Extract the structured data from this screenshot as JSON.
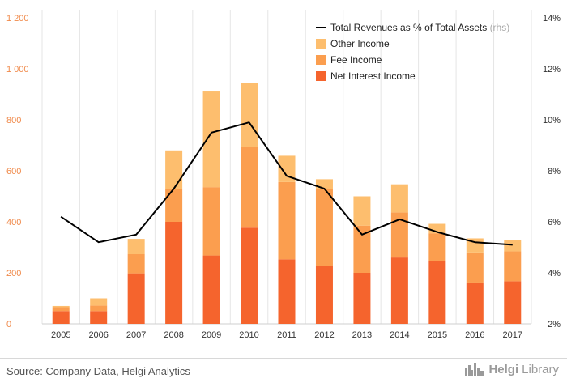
{
  "chart_data": {
    "type": "bar",
    "stacked": true,
    "categories": [
      "2005",
      "2006",
      "2007",
      "2008",
      "2009",
      "2010",
      "2011",
      "2012",
      "2013",
      "2014",
      "2015",
      "2016",
      "2017"
    ],
    "series": [
      {
        "name": "Net Interest Income",
        "color": "#f5642d",
        "values": [
          50,
          50,
          198,
          400,
          268,
          377,
          253,
          228,
          200,
          260,
          247,
          162,
          167
        ]
      },
      {
        "name": "Fee Income",
        "color": "#fb9e4f",
        "values": [
          15,
          22,
          75,
          127,
          268,
          317,
          303,
          302,
          185,
          177,
          108,
          118,
          117
        ]
      },
      {
        "name": "Other Income",
        "color": "#fdbe6e",
        "values": [
          5,
          28,
          60,
          153,
          375,
          250,
          103,
          37,
          115,
          110,
          37,
          55,
          45
        ]
      }
    ],
    "line": {
      "name": "Total Revenues as % of Total Assets",
      "name_suffix": "(rhs)",
      "color": "#000000",
      "values": [
        6.2,
        5.2,
        5.5,
        7.3,
        9.5,
        9.9,
        7.8,
        7.3,
        5.5,
        6.1,
        5.6,
        5.2,
        5.1
      ]
    },
    "y_left": {
      "ticks": [
        "0",
        "200",
        "400",
        "600",
        "800",
        "1 000",
        "1 200"
      ],
      "tick_values": [
        0,
        200,
        400,
        600,
        800,
        1000,
        1200
      ],
      "min": 0,
      "max": 1200,
      "tick_color": "#f08a4b"
    },
    "y_right": {
      "ticks": [
        "2%",
        "4%",
        "6%",
        "8%",
        "10%",
        "12%",
        "14%"
      ],
      "tick_values": [
        2,
        4,
        6,
        8,
        10,
        12,
        14
      ],
      "min": 2,
      "max": 14
    },
    "grid": true,
    "legend_position": "top-right"
  },
  "footer": {
    "source": "Source: Company Data, Helgi Analytics",
    "brand_name": "Helgi",
    "brand_suffix": "Library",
    "logo_icon": "skyline-icon"
  }
}
